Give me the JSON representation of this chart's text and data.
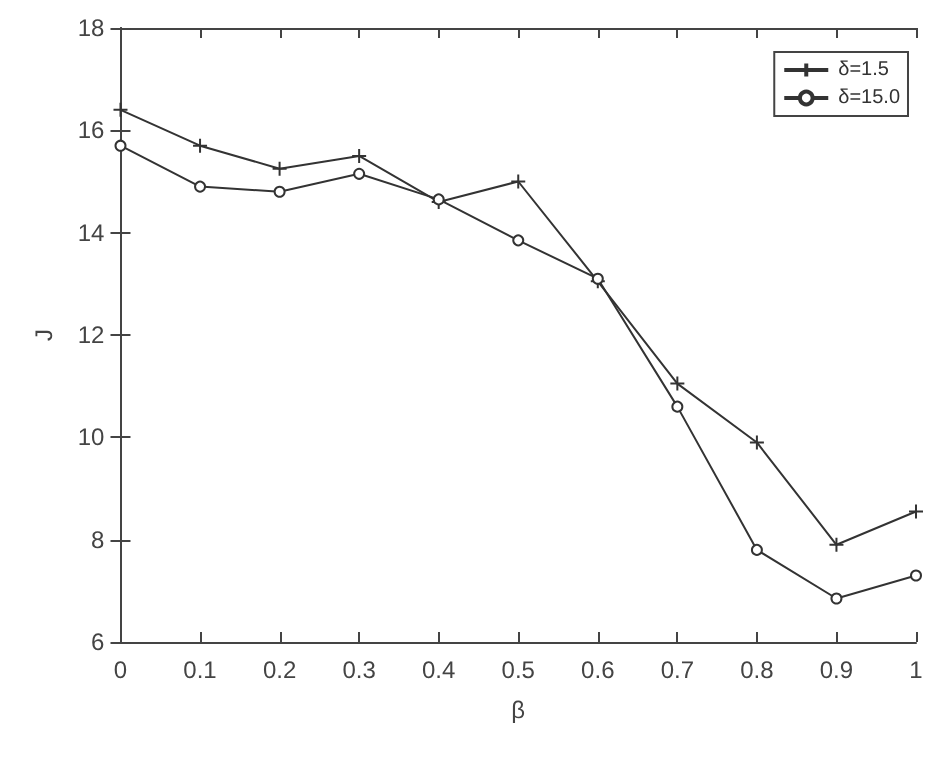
{
  "chart_data": {
    "type": "line",
    "xlabel": "β",
    "ylabel": "J",
    "x": [
      0,
      0.1,
      0.2,
      0.3,
      0.4,
      0.5,
      0.6,
      0.7,
      0.8,
      0.9,
      1
    ],
    "series": [
      {
        "name": "δ=1.5",
        "color": "#333333",
        "marker": "cross",
        "values": [
          16.4,
          15.7,
          15.25,
          15.5,
          14.6,
          15.0,
          13.05,
          11.05,
          9.9,
          7.9,
          8.55
        ]
      },
      {
        "name": "δ=15.0",
        "color": "#333333",
        "marker": "circle",
        "values": [
          15.7,
          14.9,
          14.8,
          15.15,
          14.65,
          13.85,
          13.1,
          10.6,
          7.8,
          6.85,
          7.3
        ]
      }
    ],
    "xlim": [
      0,
      1
    ],
    "xticks": [
      0,
      0.1,
      0.2,
      0.3,
      0.4,
      0.5,
      0.6,
      0.7,
      0.8,
      0.9,
      1
    ],
    "ylim": [
      6,
      18
    ],
    "yticks": [
      6,
      8,
      10,
      12,
      14,
      16,
      18
    ],
    "grid": false,
    "legend": "top right",
    "line_style": "solid"
  }
}
